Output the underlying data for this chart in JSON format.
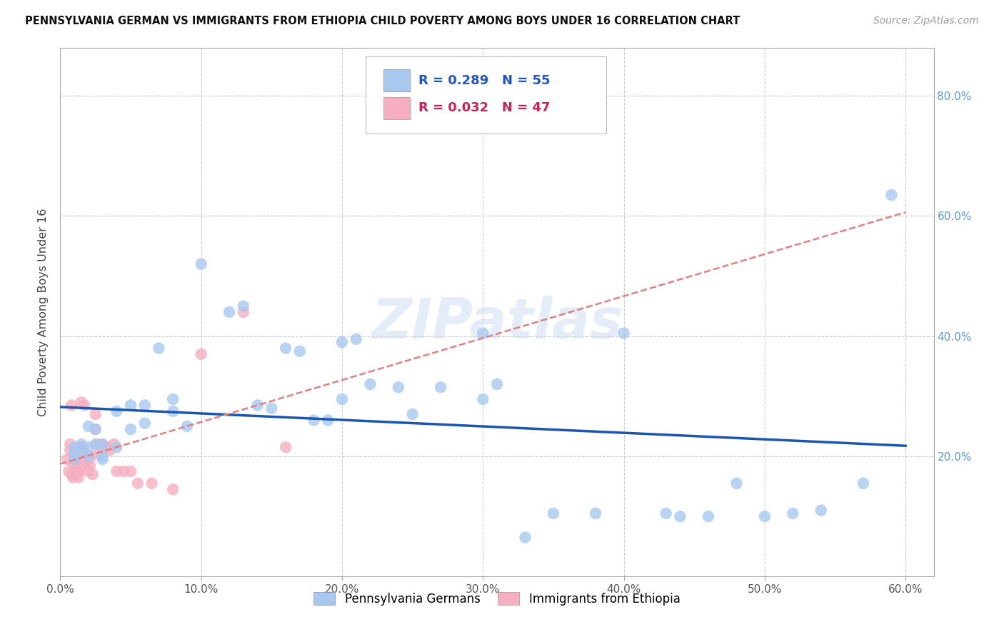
{
  "title": "PENNSYLVANIA GERMAN VS IMMIGRANTS FROM ETHIOPIA CHILD POVERTY AMONG BOYS UNDER 16 CORRELATION CHART",
  "source": "Source: ZipAtlas.com",
  "ylabel": "Child Poverty Among Boys Under 16",
  "xlim": [
    0.0,
    0.62
  ],
  "ylim": [
    0.0,
    0.88
  ],
  "xtick_values": [
    0.0,
    0.1,
    0.2,
    0.3,
    0.4,
    0.5,
    0.6
  ],
  "xtick_labels": [
    "0.0%",
    "10.0%",
    "20.0%",
    "30.0%",
    "40.0%",
    "50.0%",
    "60.0%"
  ],
  "ytick_values": [
    0.2,
    0.4,
    0.6,
    0.8
  ],
  "ytick_labels": [
    "20.0%",
    "40.0%",
    "60.0%",
    "80.0%"
  ],
  "bg_color": "#ffffff",
  "grid_color": "#cccccc",
  "blue_color": "#a8c8f0",
  "pink_color": "#f5afc0",
  "blue_line_color": "#1a56b0",
  "pink_line_color": "#e08080",
  "r_blue": 0.289,
  "n_blue": 55,
  "r_pink": 0.032,
  "n_pink": 47,
  "legend_label_blue": "Pennsylvania Germans",
  "legend_label_pink": "Immigrants from Ethiopia",
  "watermark": "ZIPatlas",
  "blue_x": [
    0.01,
    0.01,
    0.01,
    0.015,
    0.015,
    0.02,
    0.02,
    0.02,
    0.025,
    0.025,
    0.03,
    0.03,
    0.03,
    0.04,
    0.04,
    0.05,
    0.05,
    0.06,
    0.06,
    0.07,
    0.08,
    0.08,
    0.09,
    0.1,
    0.12,
    0.13,
    0.14,
    0.15,
    0.16,
    0.17,
    0.18,
    0.19,
    0.2,
    0.2,
    0.21,
    0.22,
    0.24,
    0.25,
    0.27,
    0.3,
    0.3,
    0.31,
    0.33,
    0.35,
    0.38,
    0.4,
    0.43,
    0.44,
    0.46,
    0.48,
    0.5,
    0.52,
    0.54,
    0.57,
    0.59
  ],
  "blue_y": [
    0.205,
    0.215,
    0.195,
    0.22,
    0.21,
    0.25,
    0.215,
    0.2,
    0.245,
    0.22,
    0.22,
    0.2,
    0.195,
    0.275,
    0.215,
    0.285,
    0.245,
    0.285,
    0.255,
    0.38,
    0.295,
    0.275,
    0.25,
    0.52,
    0.44,
    0.45,
    0.285,
    0.28,
    0.38,
    0.375,
    0.26,
    0.26,
    0.295,
    0.39,
    0.395,
    0.32,
    0.315,
    0.27,
    0.315,
    0.295,
    0.405,
    0.32,
    0.065,
    0.105,
    0.105,
    0.405,
    0.105,
    0.1,
    0.1,
    0.155,
    0.1,
    0.105,
    0.11,
    0.155,
    0.635
  ],
  "pink_x": [
    0.005,
    0.006,
    0.007,
    0.007,
    0.008,
    0.008,
    0.009,
    0.009,
    0.01,
    0.01,
    0.01,
    0.011,
    0.011,
    0.012,
    0.012,
    0.013,
    0.013,
    0.014,
    0.015,
    0.015,
    0.016,
    0.016,
    0.017,
    0.018,
    0.018,
    0.019,
    0.02,
    0.021,
    0.022,
    0.023,
    0.025,
    0.025,
    0.027,
    0.028,
    0.03,
    0.033,
    0.035,
    0.038,
    0.04,
    0.045,
    0.05,
    0.055,
    0.065,
    0.08,
    0.1,
    0.13,
    0.16
  ],
  "pink_y": [
    0.195,
    0.175,
    0.22,
    0.21,
    0.285,
    0.17,
    0.165,
    0.19,
    0.17,
    0.195,
    0.205,
    0.18,
    0.17,
    0.195,
    0.175,
    0.165,
    0.175,
    0.195,
    0.29,
    0.215,
    0.195,
    0.215,
    0.285,
    0.185,
    0.2,
    0.19,
    0.175,
    0.185,
    0.2,
    0.17,
    0.27,
    0.245,
    0.22,
    0.21,
    0.22,
    0.215,
    0.21,
    0.22,
    0.175,
    0.175,
    0.175,
    0.155,
    0.155,
    0.145,
    0.37,
    0.44,
    0.215
  ]
}
